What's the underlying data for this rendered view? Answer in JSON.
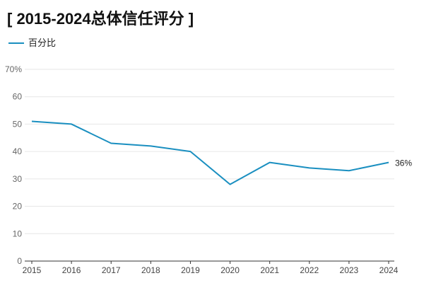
{
  "chart_data": {
    "type": "line",
    "title": "[ 2015-2024总体信任评分 ]",
    "xlabel": "",
    "ylabel": "",
    "x": [
      "2015",
      "2016",
      "2017",
      "2018",
      "2019",
      "2020",
      "2021",
      "2022",
      "2023",
      "2024"
    ],
    "series": [
      {
        "name": "百分比",
        "values": [
          51,
          50,
          43,
          42,
          40,
          28,
          36,
          34,
          33,
          36
        ],
        "color": "#1a8fc0"
      }
    ],
    "ylim": [
      0,
      70
    ],
    "yticks": [
      0,
      10,
      20,
      30,
      40,
      50,
      60,
      70
    ],
    "ytick_labels": [
      "0",
      "10",
      "20",
      "30",
      "40",
      "50",
      "60",
      "70%"
    ],
    "end_label": "36%",
    "grid": true,
    "legend_position": "top-left"
  }
}
